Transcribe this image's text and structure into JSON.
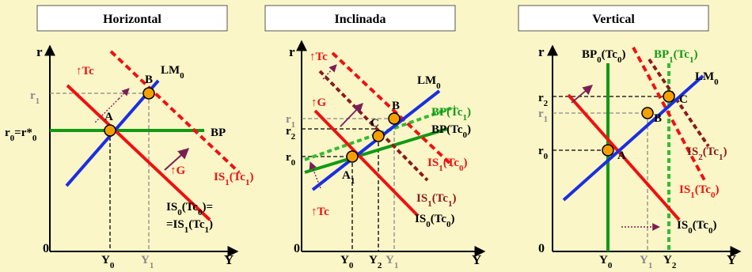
{
  "panels": [
    {
      "title": "Horizontal",
      "axis_y": "r",
      "axis_x": "Y",
      "origin": "0",
      "curves": {
        "lm": {
          "base": "LM",
          "sub": "0"
        },
        "bp": "BP",
        "is_shift": {
          "pre": "IS",
          "sub": "1",
          "post": "(Tc",
          "sub2": "1",
          "end": ")"
        },
        "is_base_line1": {
          "pre": "IS",
          "sub": "0",
          "post": "(Tc",
          "sub2": "0",
          "end": ")="
        },
        "is_base_line2": {
          "pre": "=IS",
          "sub": "1",
          "post": "(Tc",
          "sub2": "1",
          "end": ")"
        }
      },
      "points": [
        "A",
        "B"
      ],
      "shocks": [
        "↑Tc",
        "↑G"
      ],
      "y_ticks": {
        "r1": {
          "base": "r",
          "sub": "1"
        },
        "r0": {
          "pre": "r",
          "sub": "0",
          "mid": "=r*",
          "sub2": "0"
        }
      },
      "x_ticks": {
        "y0": {
          "base": "Y",
          "sub": "0"
        },
        "y1": {
          "base": "Y",
          "sub": "1"
        }
      }
    },
    {
      "title": "Inclinada",
      "axis_y": "r",
      "axis_x": "Y",
      "origin": "0",
      "curves": {
        "lm": {
          "base": "LM",
          "sub": "0"
        },
        "bp1": {
          "pre": "BP(Tc",
          "sub": "1",
          "end": ")"
        },
        "bp0": {
          "pre": "BP(Tc",
          "sub": "0",
          "end": ")"
        },
        "is1_tc0": {
          "pre": "IS",
          "sub": "1",
          "post": "(Tc",
          "sub2": "0",
          "end": ")"
        },
        "is1_tc1": {
          "pre": "IS",
          "sub": "1",
          "post": "(Tc",
          "sub2": "1",
          "end": ")"
        },
        "is0_tc0": {
          "pre": "IS",
          "sub": "0",
          "post": "(Tc",
          "sub2": "0",
          "end": ")"
        }
      },
      "points": [
        "A",
        "B",
        "C"
      ],
      "point_a_sub": "1",
      "shocks": [
        "↑Tc",
        "↑G",
        "↑Tc"
      ],
      "y_ticks": {
        "r1": {
          "base": "r",
          "sub": "1"
        },
        "r2": {
          "base": "r",
          "sub": "2"
        },
        "r0": {
          "base": "r",
          "sub": "0"
        }
      },
      "x_ticks": {
        "y0": {
          "base": "Y",
          "sub": "0"
        },
        "y2": {
          "base": "Y",
          "sub": "2"
        },
        "y1": {
          "base": "Y",
          "sub": "1"
        }
      }
    },
    {
      "title": "Vertical",
      "axis_y": "r",
      "axis_x": "Y",
      "origin": "0",
      "curves": {
        "lm": {
          "base": "LM",
          "sub": "0"
        },
        "bp0": {
          "pre": "BP",
          "sub": "0",
          "post": "(Tc",
          "sub2": "0",
          "end": ")"
        },
        "bp1": {
          "pre": "BP",
          "sub": "1",
          "post": "(Tc",
          "sub2": "1",
          "end": ")"
        },
        "is2_tc1": {
          "pre": "IS",
          "sub": "2",
          "post": "(Tc",
          "sub2": "1",
          "end": ")"
        },
        "is1_tc0": {
          "pre": "IS",
          "sub": "1",
          "post": "(Tc",
          "sub2": "0",
          "end": ")"
        },
        "is0_tc0": {
          "pre": "IS",
          "sub": "0",
          "post": "(Tc",
          "sub2": "0",
          "end": ")"
        }
      },
      "points": [
        "A",
        "B",
        "C"
      ],
      "y_ticks": {
        "r2": {
          "base": "r",
          "sub": "2"
        },
        "r1": {
          "base": "r",
          "sub": "1"
        },
        "r0": {
          "base": "r",
          "sub": "0"
        }
      },
      "x_ticks": {
        "y0": {
          "base": "Y",
          "sub": "0"
        },
        "y1": {
          "base": "Y",
          "sub": "1"
        },
        "y2": {
          "base": "Y",
          "sub": "2"
        }
      }
    }
  ],
  "colors": {
    "background": "#fbf6c8",
    "title_box": "#ffffff",
    "lm": "#1a2fe0",
    "is_red": "#ee1111",
    "is_dark": "#8b1a1a",
    "bp": "#139913",
    "bp_light": "#33bb33",
    "point": "#f5a000",
    "gray": "#8a8a8a",
    "arrow": "#7a1f55"
  }
}
